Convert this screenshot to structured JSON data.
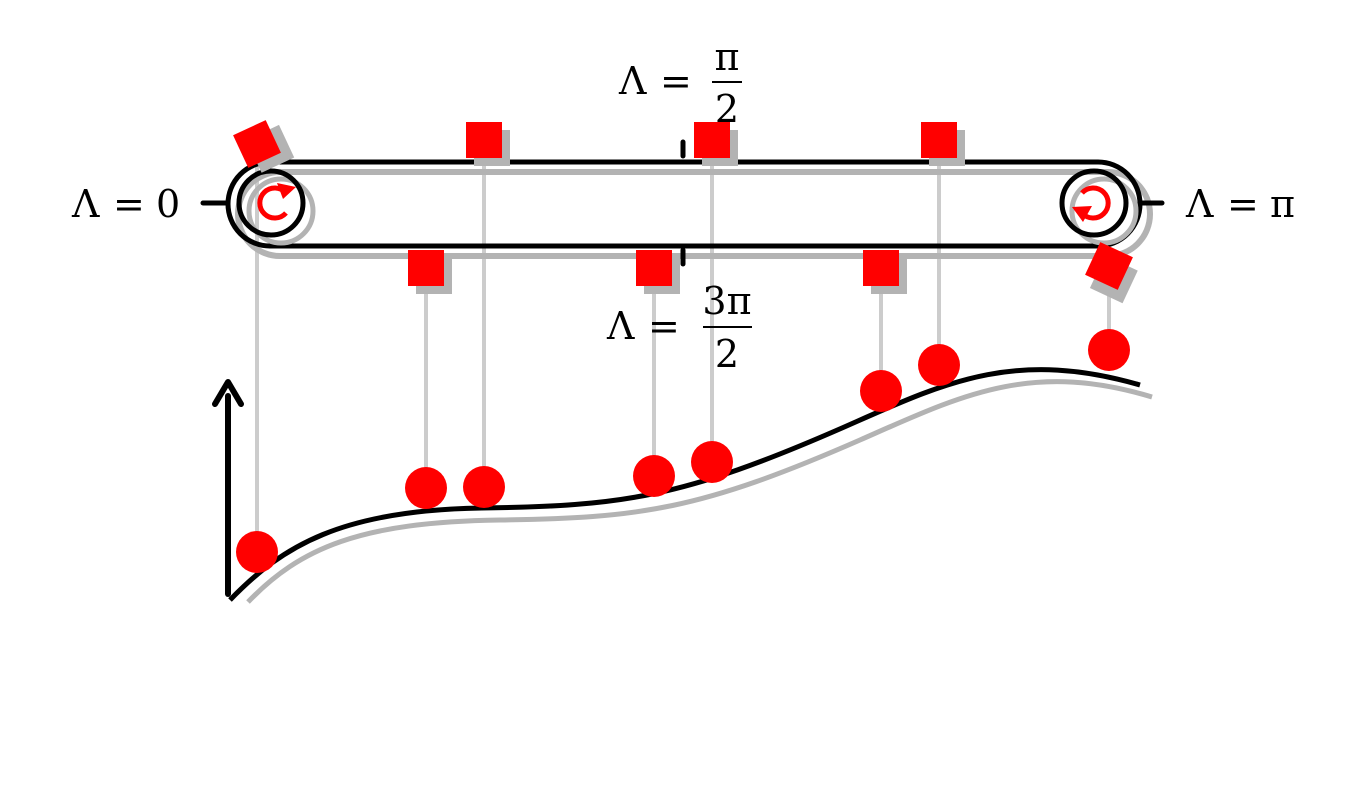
{
  "labels": {
    "lambda_zero": {
      "lhs": "Λ",
      "eq": "=",
      "value": "0"
    },
    "lambda_pi": {
      "lhs": "Λ",
      "eq": "=",
      "value": "π"
    },
    "lambda_half_pi": {
      "lhs": "Λ",
      "eq": "=",
      "numerator": "π",
      "denominator": "2"
    },
    "lambda_three_half_pi": {
      "lhs": "Λ",
      "eq": "=",
      "numerator": "3π",
      "denominator": "2"
    }
  },
  "colors": {
    "marker": "#ff0000",
    "ink": "#000000",
    "shadow": "#b3b3b3",
    "guide": "#cccccc",
    "background": "#ffffff"
  },
  "icons": {
    "pulley_rotation": "circular-arrow-icon",
    "axis": "up-arrow-icon"
  },
  "markers": {
    "count": 8,
    "shape_on_belt": "square",
    "shape_on_curve": "circle"
  }
}
